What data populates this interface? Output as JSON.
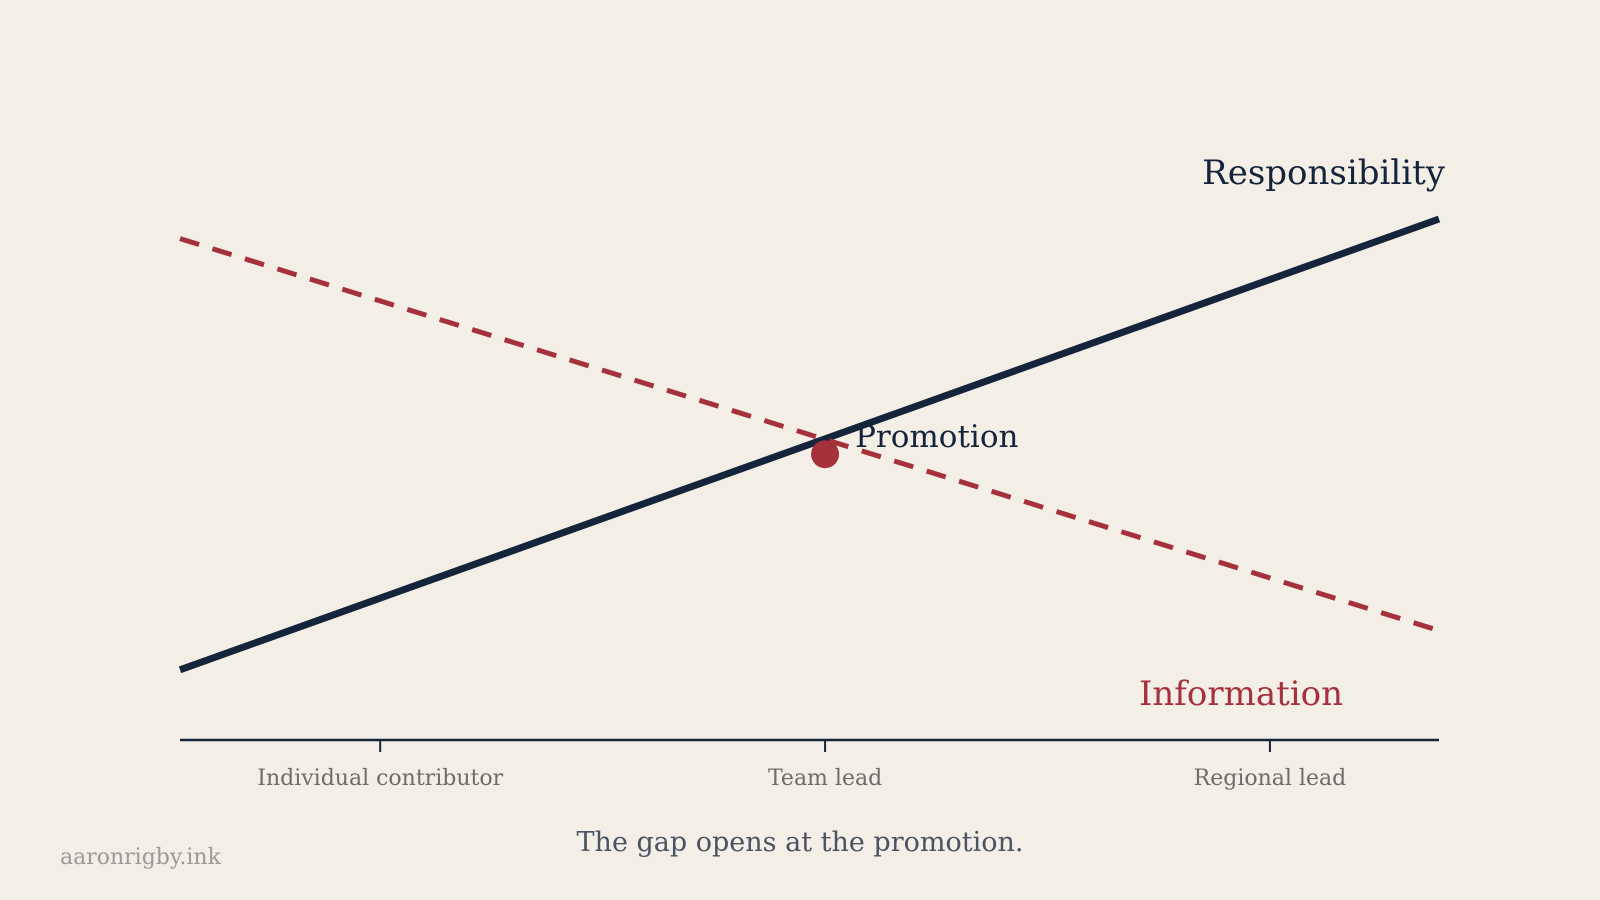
{
  "chart_data": {
    "type": "line",
    "categories": [
      "Individual contributor",
      "Team lead",
      "Regional lead"
    ],
    "x_range": [
      -0.45,
      2.38
    ],
    "y_range": [
      0,
      1
    ],
    "series": [
      {
        "name": "Responsibility",
        "x": [
          -0.45,
          2.38
        ],
        "y": [
          0.08,
          1.0
        ],
        "color": "#14243a",
        "style": "solid"
      },
      {
        "name": "Information",
        "x": [
          -0.45,
          2.38
        ],
        "y": [
          0.96,
          0.16
        ],
        "color": "#a5313c",
        "style": "dashed"
      }
    ],
    "annotation": {
      "label": "Promotion",
      "x": 1.0,
      "y": 0.52,
      "color": "#a5313c"
    },
    "grid": false,
    "legend": "direct labels at line ends"
  },
  "caption": "The gap opens at the promotion.",
  "credit": "aaronrigby.ink",
  "colors": {
    "background": "#f3efe6",
    "axis": "#14243a",
    "responsibility": "#14243a",
    "information": "#a5313c"
  }
}
